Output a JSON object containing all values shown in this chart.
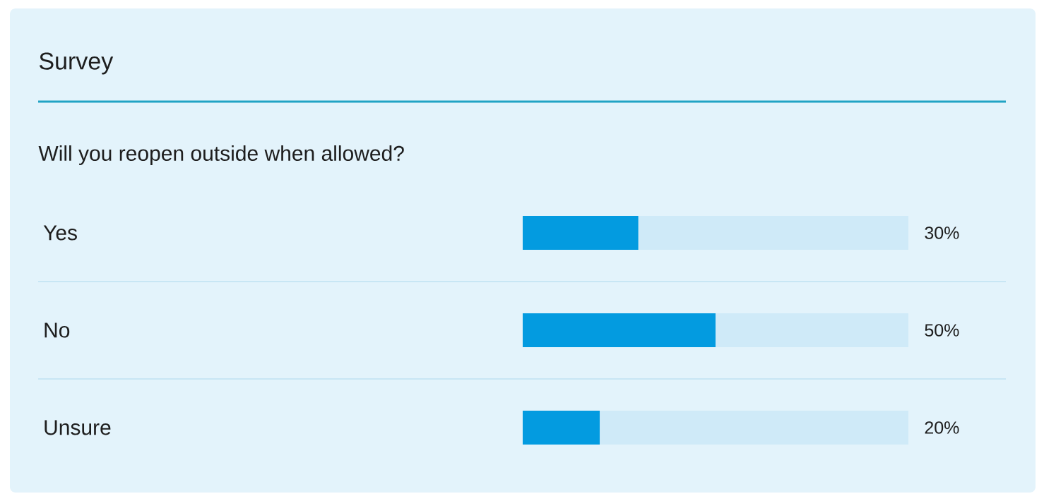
{
  "chart_data": {
    "type": "bar",
    "orientation": "horizontal",
    "stacked": true,
    "title": "Survey",
    "subtitle": "Will you reopen outside when allowed?",
    "categories": [
      "Yes",
      "No",
      "Unsure"
    ],
    "series": [
      {
        "color": "#039be0",
        "values": [
          30,
          50,
          20
        ],
        "value_labels": [
          "30%",
          "50%",
          "20%"
        ]
      },
      {
        "color": "#cfeaf8",
        "values": [
          70,
          50,
          80
        ]
      }
    ],
    "tick_labels": "y"
  }
}
